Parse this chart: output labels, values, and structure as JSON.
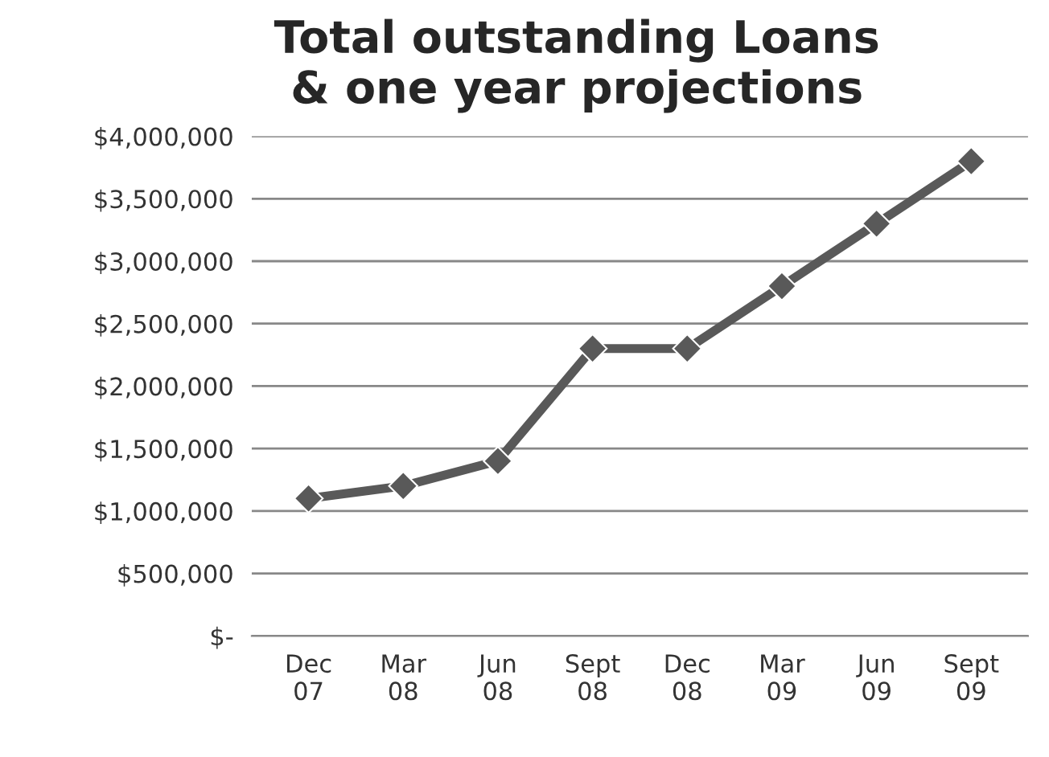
{
  "chart_data": {
    "type": "line",
    "title": "Total outstanding Loans\n& one year projections",
    "categories": [
      "Dec\n07",
      "Mar\n08",
      "Jun\n08",
      "Sept\n08",
      "Dec\n08",
      "Mar\n09",
      "Jun\n09",
      "Sept\n09"
    ],
    "series": [
      {
        "color": "#595959",
        "values": [
          1100000,
          1200000,
          1400000,
          2300000,
          2300000,
          2800000,
          3300000,
          3800000
        ]
      }
    ],
    "ylim": [
      0,
      4000000
    ],
    "yticks": [
      {
        "value": 0,
        "label": "$-"
      },
      {
        "value": 500000,
        "label": "$500,000"
      },
      {
        "value": 1000000,
        "label": "$1,000,000"
      },
      {
        "value": 1500000,
        "label": "$1,500,000"
      },
      {
        "value": 2000000,
        "label": "$2,000,000"
      },
      {
        "value": 2500000,
        "label": "$2,500,000"
      },
      {
        "value": 3000000,
        "label": "$3,000,000"
      },
      {
        "value": 3500000,
        "label": "$3,500,000"
      },
      {
        "value": 4000000,
        "label": "$4,000,000"
      }
    ],
    "grid": "y",
    "marker": "diamond",
    "line_style": "solid"
  }
}
